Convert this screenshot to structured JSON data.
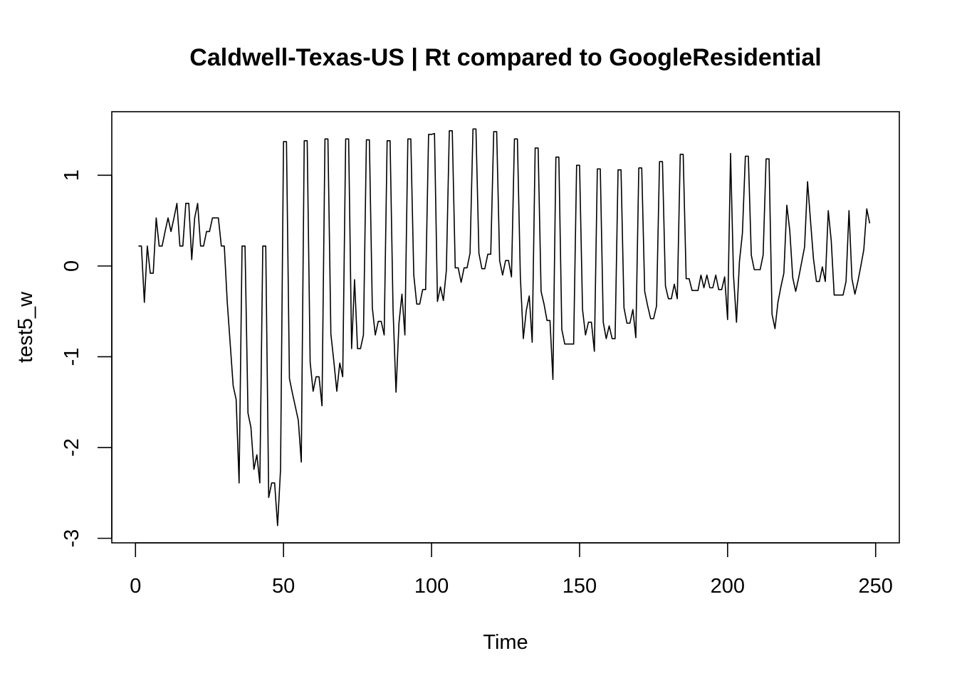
{
  "chart_data": {
    "type": "line",
    "title": "Caldwell-Texas-US | Rt compared to GoogleResidential",
    "xlabel": "Time",
    "ylabel": "test5_w",
    "xlim": [
      -8,
      258
    ],
    "ylim": [
      -3.05,
      1.7
    ],
    "x_ticks": [
      0,
      50,
      100,
      150,
      200,
      250
    ],
    "y_ticks": [
      -3,
      -2,
      -1,
      0,
      1
    ],
    "grid": false,
    "legend": "none",
    "line_color": "#000000",
    "series": [
      {
        "x_start": 1,
        "values": [
          0.22,
          0.22,
          -0.4,
          0.22,
          -0.08,
          -0.08,
          0.53,
          0.22,
          0.22,
          0.38,
          0.53,
          0.38,
          0.53,
          0.69,
          0.22,
          0.22,
          0.69,
          0.69,
          0.07,
          0.53,
          0.69,
          0.22,
          0.22,
          0.38,
          0.38,
          0.53,
          0.53,
          0.53,
          0.22,
          0.22,
          -0.4,
          -0.86,
          -1.32,
          -1.47,
          -2.39,
          0.22,
          0.22,
          -1.62,
          -1.78,
          -2.24,
          -2.08,
          -2.39,
          0.22,
          0.22,
          -2.55,
          -2.39,
          -2.39,
          -2.86,
          -2.24,
          1.37,
          1.37,
          -1.24,
          -1.4,
          -1.55,
          -1.7,
          -2.16,
          1.38,
          1.38,
          -1.06,
          -1.38,
          -1.22,
          -1.22,
          -1.54,
          1.4,
          1.4,
          -0.75,
          -1.05,
          -1.38,
          -1.07,
          -1.22,
          1.4,
          1.4,
          -0.91,
          -0.15,
          -0.91,
          -0.91,
          -0.76,
          1.39,
          1.39,
          -0.46,
          -0.76,
          -0.61,
          -0.61,
          -0.76,
          1.38,
          1.38,
          -0.48,
          -1.39,
          -0.63,
          -0.31,
          -0.76,
          1.4,
          1.4,
          -0.1,
          -0.42,
          -0.42,
          -0.26,
          -0.26,
          1.45,
          1.45,
          1.46,
          -0.39,
          -0.23,
          -0.38,
          -0.05,
          1.49,
          1.49,
          -0.02,
          -0.02,
          -0.18,
          -0.02,
          -0.02,
          0.14,
          1.51,
          1.51,
          0.14,
          -0.03,
          -0.03,
          0.13,
          0.13,
          1.48,
          1.48,
          0.06,
          -0.1,
          0.06,
          0.06,
          -0.12,
          1.4,
          1.4,
          -0.12,
          -0.8,
          -0.49,
          -0.33,
          -0.84,
          1.3,
          1.3,
          -0.28,
          -0.42,
          -0.6,
          -0.6,
          -1.25,
          1.2,
          1.2,
          -0.7,
          -0.86,
          -0.86,
          -0.86,
          -0.86,
          1.11,
          1.11,
          -0.48,
          -0.76,
          -0.62,
          -0.62,
          -0.94,
          1.07,
          1.07,
          -0.62,
          -0.8,
          -0.66,
          -0.8,
          -0.8,
          1.06,
          1.06,
          -0.46,
          -0.63,
          -0.63,
          -0.48,
          -0.79,
          1.08,
          1.08,
          -0.28,
          -0.44,
          -0.58,
          -0.58,
          -0.44,
          1.15,
          1.15,
          -0.22,
          -0.36,
          -0.36,
          -0.2,
          -0.36,
          1.23,
          1.23,
          -0.14,
          -0.14,
          -0.27,
          -0.27,
          -0.27,
          -0.1,
          -0.24,
          -0.1,
          -0.24,
          -0.24,
          -0.1,
          -0.26,
          -0.26,
          -0.12,
          -0.59,
          1.24,
          -0.11,
          -0.62,
          0.05,
          0.36,
          1.21,
          1.21,
          0.12,
          -0.04,
          -0.04,
          -0.04,
          0.12,
          1.18,
          1.18,
          -0.53,
          -0.69,
          -0.4,
          -0.23,
          -0.08,
          0.67,
          0.39,
          -0.13,
          -0.28,
          -0.13,
          0.04,
          0.21,
          0.93,
          0.5,
          0.08,
          -0.17,
          -0.17,
          -0.01,
          -0.17,
          0.61,
          0.28,
          -0.32,
          -0.32,
          -0.32,
          -0.32,
          -0.17,
          0.61,
          -0.14,
          -0.31,
          -0.17,
          0.0,
          0.18,
          0.63,
          0.47
        ]
      }
    ]
  }
}
